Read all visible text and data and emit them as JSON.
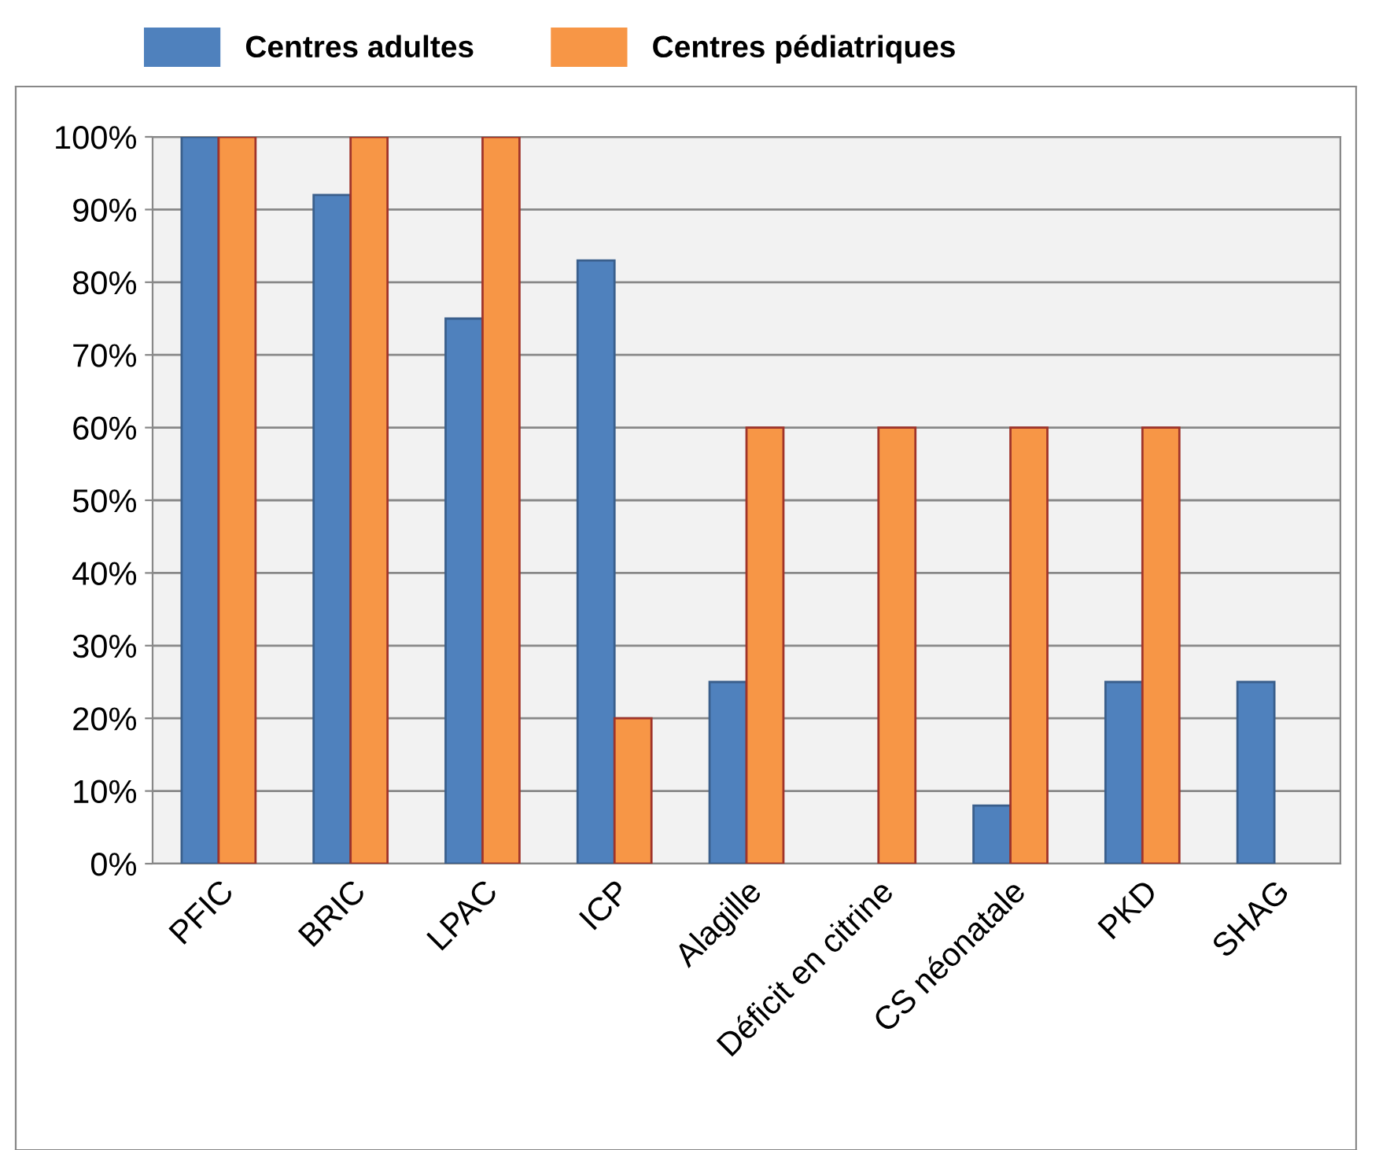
{
  "chart_data": {
    "type": "bar",
    "categories": [
      "PFIC",
      "BRIC",
      "LPAC",
      "ICP",
      "Alagille",
      "Déficit en citrine",
      "CS néonatale",
      "PKD",
      "SHAG"
    ],
    "series": [
      {
        "name": "Centres adultes",
        "color": "#4f81bd",
        "values": [
          100,
          92,
          75,
          83,
          25,
          null,
          8,
          25,
          25
        ]
      },
      {
        "name": "Centres pédiatriques",
        "color": "#f79646",
        "values": [
          100,
          100,
          100,
          20,
          60,
          60,
          60,
          60,
          null
        ]
      }
    ],
    "ylim": [
      0,
      100
    ],
    "yticks": [
      {
        "value": 0,
        "label": "0%"
      },
      {
        "value": 10,
        "label": "10%"
      },
      {
        "value": 20,
        "label": "20%"
      },
      {
        "value": 30,
        "label": "30%"
      },
      {
        "value": 40,
        "label": "40%"
      },
      {
        "value": 50,
        "label": "50%"
      },
      {
        "value": 60,
        "label": "60%"
      },
      {
        "value": 70,
        "label": "70%"
      },
      {
        "value": 80,
        "label": "80%"
      },
      {
        "value": 90,
        "label": "90%"
      },
      {
        "value": 100,
        "label": "100%"
      }
    ],
    "grid": "y",
    "legend": "top"
  }
}
